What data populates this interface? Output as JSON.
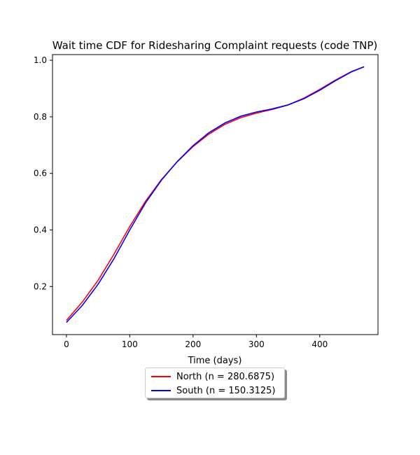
{
  "chart_data": {
    "type": "line",
    "title": "Wait time CDF for Ridesharing Complaint  requests (code TNP)",
    "xlabel": "Time (days)",
    "ylabel": "",
    "xlim": [
      -22,
      492
    ],
    "ylim": [
      0.03,
      1.02
    ],
    "xticks": [
      0,
      100,
      200,
      300,
      400
    ],
    "yticks": [
      0.2,
      0.4,
      0.6,
      0.8,
      1.0
    ],
    "grid": false,
    "legend_position": "below",
    "series": [
      {
        "name": "North (n = 280.6875)",
        "color": "#ff0000",
        "x": [
          0,
          25,
          50,
          75,
          100,
          125,
          150,
          175,
          200,
          225,
          250,
          275,
          300,
          325,
          350,
          375,
          400,
          425,
          450,
          470
        ],
        "y": [
          0.08,
          0.145,
          0.222,
          0.314,
          0.412,
          0.502,
          0.578,
          0.641,
          0.695,
          0.739,
          0.773,
          0.797,
          0.813,
          0.826,
          0.842,
          0.866,
          0.897,
          0.93,
          0.96,
          0.977
        ]
      },
      {
        "name": "South (n = 150.3125)",
        "color": "#0000ff",
        "x": [
          0,
          25,
          50,
          75,
          100,
          125,
          150,
          175,
          200,
          225,
          250,
          275,
          300,
          325,
          350,
          375,
          400,
          425,
          450,
          470
        ],
        "y": [
          0.073,
          0.133,
          0.208,
          0.298,
          0.4,
          0.496,
          0.576,
          0.642,
          0.698,
          0.744,
          0.778,
          0.802,
          0.817,
          0.828,
          0.842,
          0.864,
          0.894,
          0.928,
          0.959,
          0.977
        ]
      }
    ]
  }
}
